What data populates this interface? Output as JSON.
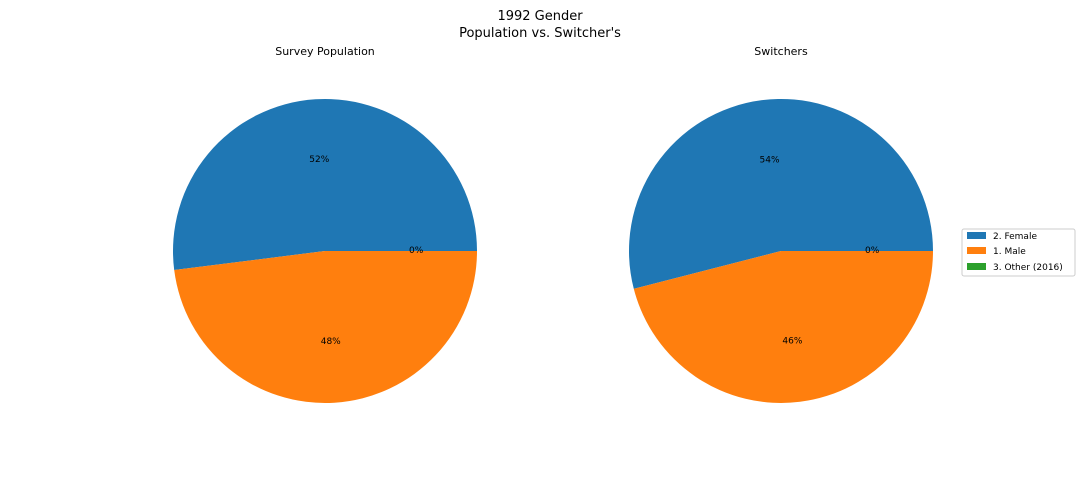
{
  "figure": {
    "title_line1": "1992 Gender",
    "title_line2": "Population vs. Switcher's"
  },
  "chart_data": [
    {
      "type": "pie",
      "title": "Survey Population",
      "labels": [
        "2. Female",
        "1. Male",
        "3. Other (2016)"
      ],
      "values": [
        52,
        48,
        0
      ],
      "value_labels": [
        "52%",
        "48%",
        "0%"
      ],
      "colors": [
        "#1f77b4",
        "#ff7f0e",
        "#2ca02c"
      ],
      "start_angle_deg": 0,
      "direction": "counterclockwise"
    },
    {
      "type": "pie",
      "title": "Switchers",
      "labels": [
        "2. Female",
        "1. Male",
        "3. Other (2016)"
      ],
      "values": [
        54,
        46,
        0
      ],
      "value_labels": [
        "54%",
        "46%",
        "0%"
      ],
      "colors": [
        "#1f77b4",
        "#ff7f0e",
        "#2ca02c"
      ],
      "start_angle_deg": 0,
      "direction": "counterclockwise"
    }
  ],
  "legend": {
    "placement": "right",
    "items": [
      {
        "label": "2. Female",
        "color": "#1f77b4"
      },
      {
        "label": "1. Male",
        "color": "#ff7f0e"
      },
      {
        "label": "3. Other (2016)",
        "color": "#2ca02c"
      }
    ]
  }
}
